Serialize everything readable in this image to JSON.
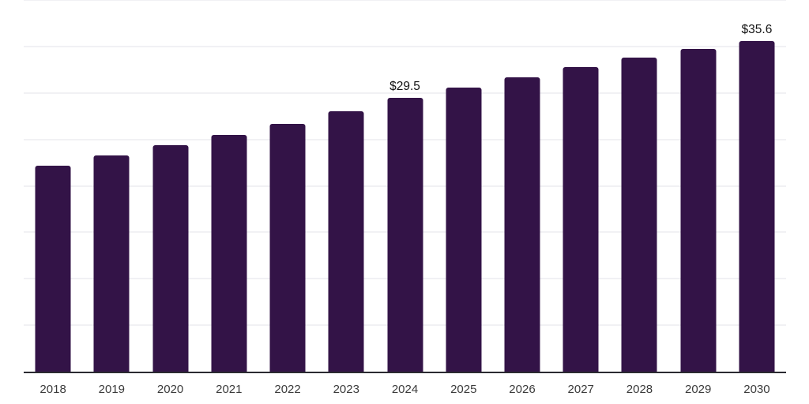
{
  "chart_data": {
    "type": "bar",
    "categories": [
      "2018",
      "2019",
      "2020",
      "2021",
      "2022",
      "2023",
      "2024",
      "2025",
      "2026",
      "2027",
      "2028",
      "2029",
      "2030"
    ],
    "values": [
      22.2,
      23.3,
      24.4,
      25.5,
      26.7,
      28.0,
      29.5,
      30.6,
      31.7,
      32.8,
      33.8,
      34.7,
      35.6
    ],
    "point_labels": [
      "",
      "",
      "",
      "",
      "",
      "",
      "$29.5",
      "",
      "",
      "",
      "",
      "",
      "$35.6"
    ],
    "ylim": [
      0,
      40
    ],
    "grid_step": 5,
    "grid": "horizontal-light",
    "legend": "none",
    "title": "",
    "xlabel": "",
    "ylabel": ""
  },
  "colors": {
    "bar": "#331347",
    "gridline": "#f1f1f4",
    "axis_line": "#2b2b31",
    "value_label": "#141414",
    "tick_label": "#3b3b3b",
    "background": "#ffffff"
  }
}
